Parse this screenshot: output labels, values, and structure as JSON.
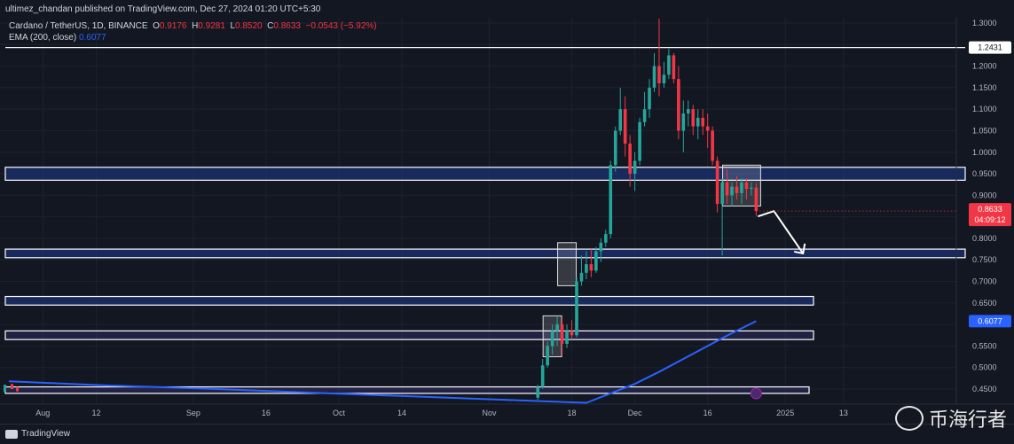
{
  "header": {
    "published": "ultimez_chandan published on TradingView.com, Dec 27, 2024 01:20 UTC+5:30"
  },
  "legend": {
    "symbol": "Cardano / TetherUS, 1D, BINANCE",
    "o_label": "O",
    "o": "0.9176",
    "h_label": "H",
    "h": "0.9281",
    "l_label": "L",
    "l": "0.8520",
    "c_label": "C",
    "c": "0.8633",
    "change": "−0.0543 (−5.92%)",
    "ema_label": "EMA (200, close)",
    "ema_value": "0.6077"
  },
  "price_labels": {
    "resistance": "1.2431",
    "last_price": "0.8633",
    "countdown": "04:09:12",
    "ema_tag": "0.6077"
  },
  "footer": {
    "brand": "TradingView"
  },
  "watermark": {
    "text": "币海行者"
  },
  "colors": {
    "background": "#131722",
    "up": "#26a69a",
    "down": "#f23645",
    "ema": "#2962ff",
    "zone_fill": "#1e3a8a",
    "zone_fill_purple": "#2d2a5e",
    "zone_border": "#ffffff"
  },
  "chart_data": {
    "type": "candlestick",
    "title": "Cardano / TetherUS, 1D, BINANCE",
    "y_axis_ticks": [
      "1.3000",
      "1.2500",
      "1.2000",
      "1.1500",
      "1.1000",
      "1.0500",
      "1.0000",
      "0.9500",
      "0.9000",
      "0.8500",
      "0.8000",
      "0.7500",
      "0.7000",
      "0.6500",
      "0.6000",
      "0.5500",
      "0.5000",
      "0.4500"
    ],
    "x_axis_ticks": [
      "Aug",
      "12",
      "Sep",
      "16",
      "Oct",
      "14",
      "Nov",
      "18",
      "Dec",
      "16",
      "2025",
      "13"
    ],
    "ylim": [
      0.43,
      1.31
    ],
    "zones": [
      {
        "low": 0.935,
        "high": 0.965
      },
      {
        "low": 0.755,
        "high": 0.775
      },
      {
        "low": 0.645,
        "high": 0.665
      },
      {
        "low": 0.565,
        "high": 0.585
      },
      {
        "low": 0.44,
        "high": 0.455
      }
    ],
    "resistance_line": 1.2431,
    "consolidation_boxes": [
      {
        "start": "Nov 13",
        "end": "Nov 15",
        "low": 0.525,
        "high": 0.62
      },
      {
        "start": "Nov 16",
        "end": "Nov 18",
        "low": 0.69,
        "high": 0.79
      },
      {
        "start": "Dec 20",
        "end": "Dec 26",
        "low": 0.875,
        "high": 0.97
      }
    ],
    "projection": [
      {
        "date": "Dec 26",
        "price": 0.8633
      },
      {
        "date": "Jan 1",
        "price": 0.765
      }
    ],
    "ema200": [
      {
        "date": "Jul 25",
        "price": 0.468
      },
      {
        "date": "Aug 15",
        "price": 0.458
      },
      {
        "date": "Sep 6",
        "price": 0.45
      },
      {
        "date": "Sep 22",
        "price": 0.443
      },
      {
        "date": "Nov 21",
        "price": 0.418
      },
      {
        "date": "Nov 26",
        "price": 0.44
      },
      {
        "date": "Dec 1",
        "price": 0.462
      },
      {
        "date": "Dec 6",
        "price": 0.49
      },
      {
        "date": "Dec 11",
        "price": 0.52
      },
      {
        "date": "Dec 16",
        "price": 0.55
      },
      {
        "date": "Dec 21",
        "price": 0.58
      },
      {
        "date": "Dec 26",
        "price": 0.6077
      }
    ],
    "candles": [
      {
        "date": "Nov 11",
        "o": 0.43,
        "h": 0.46,
        "l": 0.425,
        "c": 0.455
      },
      {
        "date": "Nov 12",
        "o": 0.455,
        "h": 0.52,
        "l": 0.45,
        "c": 0.505
      },
      {
        "date": "Nov 13",
        "o": 0.505,
        "h": 0.56,
        "l": 0.5,
        "c": 0.55
      },
      {
        "date": "Nov 14",
        "o": 0.55,
        "h": 0.6,
        "l": 0.53,
        "c": 0.585
      },
      {
        "date": "Nov 15",
        "o": 0.585,
        "h": 0.62,
        "l": 0.55,
        "c": 0.6
      },
      {
        "date": "Nov 16",
        "o": 0.6,
        "h": 0.615,
        "l": 0.53,
        "c": 0.555
      },
      {
        "date": "Nov 17",
        "o": 0.555,
        "h": 0.6,
        "l": 0.545,
        "c": 0.585
      },
      {
        "date": "Nov 18",
        "o": 0.585,
        "h": 0.61,
        "l": 0.565,
        "c": 0.575
      },
      {
        "date": "Nov 19",
        "o": 0.575,
        "h": 0.71,
        "l": 0.57,
        "c": 0.7
      },
      {
        "date": "Nov 20",
        "o": 0.7,
        "h": 0.76,
        "l": 0.69,
        "c": 0.72
      },
      {
        "date": "Nov 21",
        "o": 0.72,
        "h": 0.77,
        "l": 0.705,
        "c": 0.74
      },
      {
        "date": "Nov 22",
        "o": 0.74,
        "h": 0.775,
        "l": 0.71,
        "c": 0.725
      },
      {
        "date": "Nov 23",
        "o": 0.725,
        "h": 0.78,
        "l": 0.72,
        "c": 0.77
      },
      {
        "date": "Nov 24",
        "o": 0.77,
        "h": 0.8,
        "l": 0.745,
        "c": 0.79
      },
      {
        "date": "Nov 25",
        "o": 0.79,
        "h": 0.82,
        "l": 0.78,
        "c": 0.81
      },
      {
        "date": "Nov 26",
        "o": 0.81,
        "h": 0.98,
        "l": 0.8,
        "c": 0.97
      },
      {
        "date": "Nov 27",
        "o": 0.97,
        "h": 1.06,
        "l": 0.955,
        "c": 1.05
      },
      {
        "date": "Nov 28",
        "o": 1.05,
        "h": 1.15,
        "l": 1.04,
        "c": 1.1
      },
      {
        "date": "Nov 29",
        "o": 1.1,
        "h": 1.13,
        "l": 0.99,
        "c": 1.02
      },
      {
        "date": "Nov 30",
        "o": 1.02,
        "h": 1.04,
        "l": 0.92,
        "c": 0.95
      },
      {
        "date": "Dec 1",
        "o": 0.95,
        "h": 1.0,
        "l": 0.91,
        "c": 0.98
      },
      {
        "date": "Dec 2",
        "o": 0.98,
        "h": 1.08,
        "l": 0.97,
        "c": 1.07
      },
      {
        "date": "Dec 3",
        "o": 1.07,
        "h": 1.14,
        "l": 1.06,
        "c": 1.1
      },
      {
        "date": "Dec 4",
        "o": 1.1,
        "h": 1.17,
        "l": 1.08,
        "c": 1.15
      },
      {
        "date": "Dec 5",
        "o": 1.15,
        "h": 1.23,
        "l": 1.14,
        "c": 1.2
      },
      {
        "date": "Dec 6",
        "o": 1.2,
        "h": 1.31,
        "l": 1.13,
        "c": 1.16
      },
      {
        "date": "Dec 7",
        "o": 1.16,
        "h": 1.21,
        "l": 1.15,
        "c": 1.18
      },
      {
        "date": "Dec 8",
        "o": 1.18,
        "h": 1.24,
        "l": 1.17,
        "c": 1.225
      },
      {
        "date": "Dec 9",
        "o": 1.225,
        "h": 1.23,
        "l": 1.16,
        "c": 1.17
      },
      {
        "date": "Dec 10",
        "o": 1.17,
        "h": 1.2,
        "l": 1.03,
        "c": 1.05
      },
      {
        "date": "Dec 11",
        "o": 1.05,
        "h": 1.12,
        "l": 1.0,
        "c": 1.09
      },
      {
        "date": "Dec 12",
        "o": 1.09,
        "h": 1.12,
        "l": 1.06,
        "c": 1.1
      },
      {
        "date": "Dec 13",
        "o": 1.1,
        "h": 1.11,
        "l": 1.04,
        "c": 1.06
      },
      {
        "date": "Dec 14",
        "o": 1.06,
        "h": 1.1,
        "l": 1.03,
        "c": 1.08
      },
      {
        "date": "Dec 15",
        "o": 1.08,
        "h": 1.1,
        "l": 1.04,
        "c": 1.06
      },
      {
        "date": "Dec 16",
        "o": 1.06,
        "h": 1.09,
        "l": 1.01,
        "c": 1.05
      },
      {
        "date": "Dec 17",
        "o": 1.05,
        "h": 1.06,
        "l": 0.97,
        "c": 0.98
      },
      {
        "date": "Dec 18",
        "o": 0.98,
        "h": 0.99,
        "l": 0.86,
        "c": 0.88
      },
      {
        "date": "Dec 19",
        "o": 0.88,
        "h": 0.94,
        "l": 0.76,
        "c": 0.93
      },
      {
        "date": "Dec 20",
        "o": 0.93,
        "h": 0.96,
        "l": 0.88,
        "c": 0.9
      },
      {
        "date": "Dec 21",
        "o": 0.9,
        "h": 0.93,
        "l": 0.875,
        "c": 0.92
      },
      {
        "date": "Dec 22",
        "o": 0.92,
        "h": 0.945,
        "l": 0.89,
        "c": 0.905
      },
      {
        "date": "Dec 23",
        "o": 0.905,
        "h": 0.94,
        "l": 0.88,
        "c": 0.93
      },
      {
        "date": "Dec 24",
        "o": 0.93,
        "h": 0.94,
        "l": 0.89,
        "c": 0.915
      },
      {
        "date": "Dec 25",
        "o": 0.915,
        "h": 0.93,
        "l": 0.9,
        "c": 0.9176
      },
      {
        "date": "Dec 26",
        "o": 0.9176,
        "h": 0.9281,
        "l": 0.852,
        "c": 0.8633
      }
    ]
  }
}
